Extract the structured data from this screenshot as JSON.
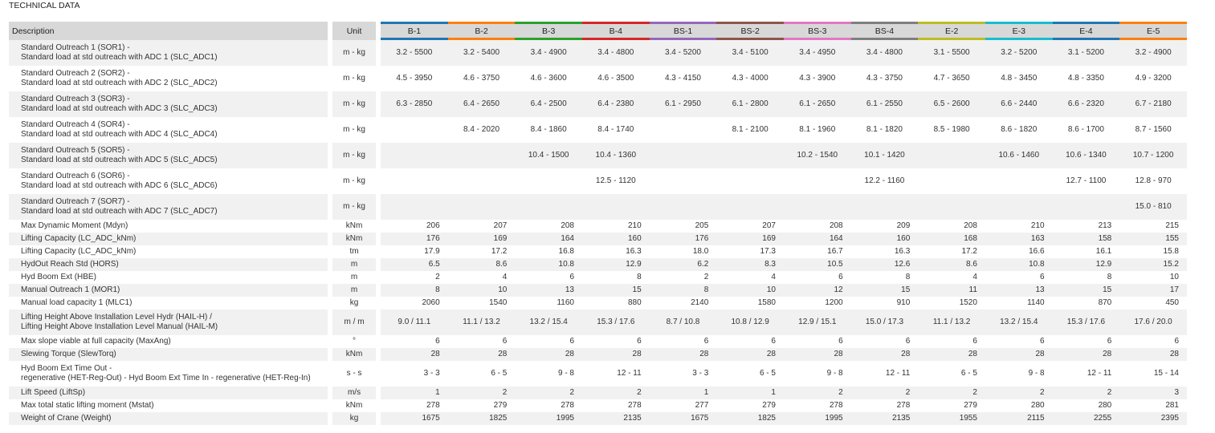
{
  "page_title": "TECHNICAL DATA",
  "header": {
    "description": "Description",
    "unit": "Unit"
  },
  "models": [
    {
      "label": "B-1",
      "color": "#1f77b4"
    },
    {
      "label": "B-2",
      "color": "#ff7f0e"
    },
    {
      "label": "B-3",
      "color": "#2ca02c"
    },
    {
      "label": "B-4",
      "color": "#d62728"
    },
    {
      "label": "BS-1",
      "color": "#9467bd"
    },
    {
      "label": "BS-2",
      "color": "#8c564b"
    },
    {
      "label": "BS-3",
      "color": "#e377c2"
    },
    {
      "label": "BS-4",
      "color": "#7f7f7f"
    },
    {
      "label": "E-2",
      "color": "#bcbd22"
    },
    {
      "label": "E-3",
      "color": "#17becf"
    },
    {
      "label": "E-4",
      "color": "#1f77b4"
    },
    {
      "label": "E-5",
      "color": "#ff7f0e"
    }
  ],
  "rows": [
    {
      "desc": [
        "Standard Outreach 1 (SOR1) -",
        "Standard load at std outreach with ADC 1 (SLC_ADC1)"
      ],
      "unit": "m - kg",
      "align": "center",
      "values": [
        "3.2 - 5500",
        "3.2 - 5400",
        "3.4 - 4900",
        "3.4 - 4800",
        "3.4 - 5200",
        "3.4 - 5100",
        "3.4 - 4950",
        "3.4 - 4800",
        "3.1 - 5500",
        "3.2 - 5200",
        "3.1 - 5200",
        "3.2 - 4900"
      ]
    },
    {
      "desc": [
        "Standard Outreach 2 (SOR2) -",
        "Standard load at std outreach with ADC 2 (SLC_ADC2)"
      ],
      "unit": "m - kg",
      "align": "center",
      "values": [
        "4.5 - 3950",
        "4.6 - 3750",
        "4.6 - 3600",
        "4.6 - 3500",
        "4.3 - 4150",
        "4.3 - 4000",
        "4.3 - 3900",
        "4.3 - 3750",
        "4.7 - 3650",
        "4.8 - 3450",
        "4.8 - 3350",
        "4.9 - 3200"
      ]
    },
    {
      "desc": [
        "Standard Outreach 3 (SOR3) -",
        "Standard load at std outreach with ADC 3 (SLC_ADC3)"
      ],
      "unit": "m - kg",
      "align": "center",
      "values": [
        "6.3 - 2850",
        "6.4 - 2650",
        "6.4 - 2500",
        "6.4 - 2380",
        "6.1 - 2950",
        "6.1 - 2800",
        "6.1 - 2650",
        "6.1 - 2550",
        "6.5 - 2600",
        "6.6 - 2440",
        "6.6 - 2320",
        "6.7 - 2180"
      ]
    },
    {
      "desc": [
        "Standard Outreach 4 (SOR4) -",
        "Standard load at std outreach with ADC 4 (SLC_ADC4)"
      ],
      "unit": "m - kg",
      "align": "center",
      "values": [
        "",
        "8.4 - 2020",
        "8.4 - 1860",
        "8.4 - 1740",
        "",
        "8.1 - 2100",
        "8.1 - 1960",
        "8.1 - 1820",
        "8.5 - 1980",
        "8.6 - 1820",
        "8.6 - 1700",
        "8.7 - 1560"
      ]
    },
    {
      "desc": [
        "Standard Outreach 5 (SOR5) -",
        "Standard load at std outreach with ADC 5 (SLC_ADC5)"
      ],
      "unit": "m - kg",
      "align": "center",
      "values": [
        "",
        "",
        "10.4 - 1500",
        "10.4 - 1360",
        "",
        "",
        "10.2 - 1540",
        "10.1 - 1420",
        "",
        "10.6 - 1460",
        "10.6 - 1340",
        "10.7 - 1200"
      ]
    },
    {
      "desc": [
        "Standard Outreach 6 (SOR6) -",
        "Standard load at std outreach with ADC 6 (SLC_ADC6)"
      ],
      "unit": "m - kg",
      "align": "center",
      "values": [
        "",
        "",
        "",
        "12.5 - 1120",
        "",
        "",
        "",
        "12.2 - 1160",
        "",
        "",
        "12.7 - 1100",
        "12.8 - 970"
      ]
    },
    {
      "desc": [
        "Standard Outreach 7 (SOR7) -",
        "Standard load at std outreach with ADC 7 (SLC_ADC7)"
      ],
      "unit": "m - kg",
      "align": "center",
      "values": [
        "",
        "",
        "",
        "",
        "",
        "",
        "",
        "",
        "",
        "",
        "",
        "15.0 - 810"
      ]
    },
    {
      "desc": [
        "Max Dynamic Moment (Mdyn)"
      ],
      "unit": "kNm",
      "align": "right",
      "values": [
        "206",
        "207",
        "208",
        "210",
        "205",
        "207",
        "208",
        "209",
        "208",
        "210",
        "213",
        "215"
      ]
    },
    {
      "desc": [
        "Lifting Capacity (LC_ADC_kNm)"
      ],
      "unit": "kNm",
      "align": "right",
      "values": [
        "176",
        "169",
        "164",
        "160",
        "176",
        "169",
        "164",
        "160",
        "168",
        "163",
        "158",
        "155"
      ]
    },
    {
      "desc": [
        "Lifting Capacity (LC_ADC_kNm)"
      ],
      "unit": "tm",
      "align": "right",
      "values": [
        "17.9",
        "17.2",
        "16.8",
        "16.3",
        "18.0",
        "17.3",
        "16.7",
        "16.3",
        "17.2",
        "16.6",
        "16.1",
        "15.8"
      ]
    },
    {
      "desc": [
        "HydOut Reach Std (HORS)"
      ],
      "unit": "m",
      "align": "right",
      "values": [
        "6.5",
        "8.6",
        "10.8",
        "12.9",
        "6.2",
        "8.3",
        "10.5",
        "12.6",
        "8.6",
        "10.8",
        "12.9",
        "15.2"
      ]
    },
    {
      "desc": [
        "Hyd Boom Ext (HBE)"
      ],
      "unit": "m",
      "align": "right",
      "values": [
        "2",
        "4",
        "6",
        "8",
        "2",
        "4",
        "6",
        "8",
        "4",
        "6",
        "8",
        "10"
      ]
    },
    {
      "desc": [
        "Manual Outreach 1 (MOR1)"
      ],
      "unit": "m",
      "align": "right",
      "values": [
        "8",
        "10",
        "13",
        "15",
        "8",
        "10",
        "12",
        "15",
        "11",
        "13",
        "15",
        "17"
      ]
    },
    {
      "desc": [
        "Manual load capacity 1 (MLC1)"
      ],
      "unit": "kg",
      "align": "right",
      "values": [
        "2060",
        "1540",
        "1160",
        "880",
        "2140",
        "1580",
        "1200",
        "910",
        "1520",
        "1140",
        "870",
        "450"
      ]
    },
    {
      "desc": [
        "Lifting Height Above Installation Level Hydr (HAIL-H) /",
        "Lifting Height Above Installation Level Manual (HAIL-M)"
      ],
      "unit": "m / m",
      "align": "center",
      "values": [
        "9.0 / 11.1",
        "11.1 / 13.2",
        "13.2 / 15.4",
        "15.3 / 17.6",
        "8.7 / 10.8",
        "10.8 / 12.9",
        "12.9 / 15.1",
        "15.0 / 17.3",
        "11.1 / 13.2",
        "13.2 / 15.4",
        "15.3 / 17.6",
        "17.6 / 20.0"
      ]
    },
    {
      "desc": [
        "Max slope viable at full capacity (MaxAng)"
      ],
      "unit": "°",
      "align": "right",
      "values": [
        "6",
        "6",
        "6",
        "6",
        "6",
        "6",
        "6",
        "6",
        "6",
        "6",
        "6",
        "6"
      ]
    },
    {
      "desc": [
        "Slewing Torque (SlewTorq)"
      ],
      "unit": "kNm",
      "align": "right",
      "values": [
        "28",
        "28",
        "28",
        "28",
        "28",
        "28",
        "28",
        "28",
        "28",
        "28",
        "28",
        "28"
      ]
    },
    {
      "desc": [
        "Hyd Boom Ext Time Out -",
        "regenerative (HET-Reg-Out) - Hyd Boom Ext Time In - regenerative (HET-Reg-In)"
      ],
      "unit": "s - s",
      "align": "right",
      "values": [
        "3 - 3",
        "6 - 5",
        "9 - 8",
        "12 - 11",
        "3 - 3",
        "6 - 5",
        "9 - 8",
        "12 - 11",
        "6 - 5",
        "9 - 8",
        "12 - 11",
        "15 - 14"
      ]
    },
    {
      "desc": [
        "Lift Speed (LiftSp)"
      ],
      "unit": "m/s",
      "align": "right",
      "values": [
        "1",
        "2",
        "2",
        "2",
        "1",
        "1",
        "2",
        "2",
        "2",
        "2",
        "2",
        "3"
      ]
    },
    {
      "desc": [
        "Max total static lifting moment (Mstat)"
      ],
      "unit": "kNm",
      "align": "right",
      "values": [
        "278",
        "279",
        "278",
        "278",
        "277",
        "279",
        "278",
        "278",
        "279",
        "280",
        "280",
        "281"
      ]
    },
    {
      "desc": [
        "Weight of Crane (Weight)"
      ],
      "unit": "kg",
      "align": "right",
      "values": [
        "1675",
        "1825",
        "1995",
        "2135",
        "1675",
        "1825",
        "1995",
        "2135",
        "1955",
        "2115",
        "2255",
        "2395"
      ]
    }
  ]
}
